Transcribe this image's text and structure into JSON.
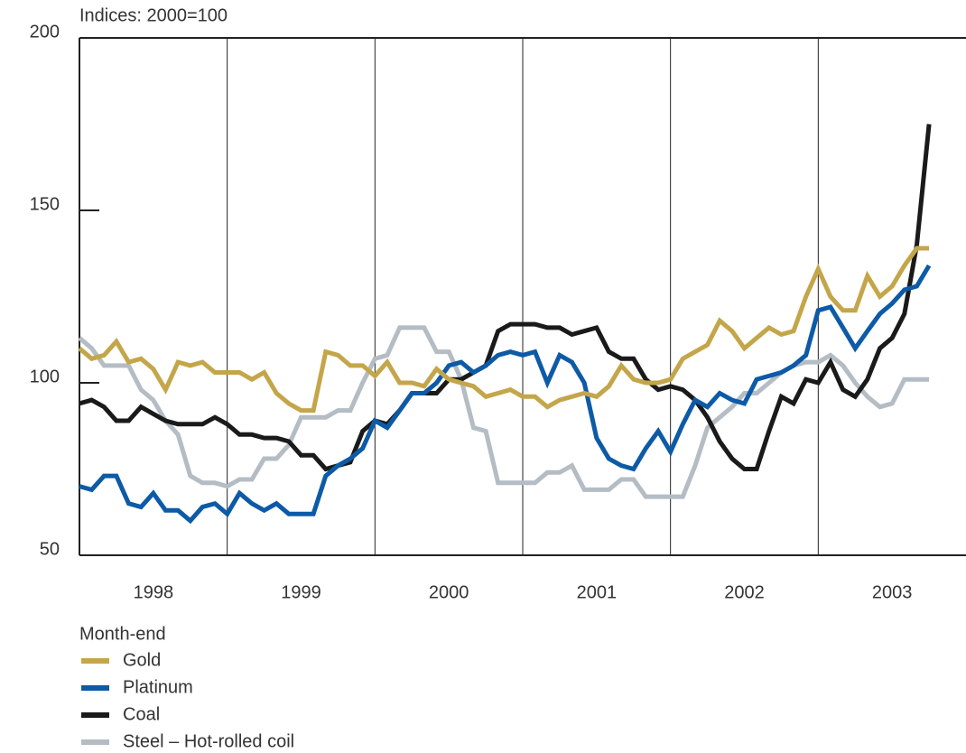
{
  "chart_data": {
    "type": "line",
    "y_label": "Indices: 2000=100",
    "legend_title": "Month-end",
    "x": [
      1998,
      1998.083,
      1998.167,
      1998.25,
      1998.333,
      1998.417,
      1998.5,
      1998.583,
      1998.667,
      1998.75,
      1998.833,
      1998.917,
      1999,
      1999.083,
      1999.167,
      1999.25,
      1999.333,
      1999.417,
      1999.5,
      1999.583,
      1999.667,
      1999.75,
      1999.833,
      1999.917,
      2000,
      2000.083,
      2000.167,
      2000.25,
      2000.333,
      2000.417,
      2000.5,
      2000.583,
      2000.667,
      2000.75,
      2000.833,
      2000.917,
      2001,
      2001.083,
      2001.167,
      2001.25,
      2001.333,
      2001.417,
      2001.5,
      2001.583,
      2001.667,
      2001.75,
      2001.833,
      2001.917,
      2002,
      2002.083,
      2002.167,
      2002.25,
      2002.333,
      2002.417,
      2002.5,
      2002.583,
      2002.667,
      2002.75,
      2002.833,
      2002.917,
      2003,
      2003.083,
      2003.167,
      2003.25,
      2003.333,
      2003.417,
      2003.5,
      2003.583,
      2003.667,
      2003.75
    ],
    "xlim": [
      1998,
      2004
    ],
    "xticks": [
      {
        "value": 1998.5,
        "label": "1998"
      },
      {
        "value": 1999.5,
        "label": "1999"
      },
      {
        "value": 2000.5,
        "label": "2000"
      },
      {
        "value": 2001.5,
        "label": "2001"
      },
      {
        "value": 2002.5,
        "label": "2002"
      },
      {
        "value": 2003.5,
        "label": "2003"
      }
    ],
    "xgrid": [
      1999,
      2000,
      2001,
      2002,
      2003
    ],
    "ylim": [
      50,
      200
    ],
    "yticks": [
      50,
      100,
      150,
      200
    ],
    "series": [
      {
        "name": "Gold",
        "color": "#c4a64a",
        "values": [
          110,
          107,
          108,
          112,
          106,
          107,
          104,
          98,
          106,
          105,
          106,
          103,
          103,
          103,
          101,
          103,
          97,
          94,
          92,
          92,
          109,
          108,
          105,
          105,
          102,
          106,
          100,
          100,
          99,
          104,
          101,
          100,
          99,
          96,
          97,
          98,
          96,
          96,
          93,
          95,
          96,
          97,
          96,
          99,
          105,
          101,
          100,
          100,
          101,
          107,
          109,
          111,
          118,
          115,
          110,
          113,
          116,
          114,
          115,
          125,
          133,
          125,
          121,
          121,
          131,
          125,
          128,
          134,
          139,
          139
        ]
      },
      {
        "name": "Platinum",
        "color": "#0d5aa7",
        "values": [
          70,
          69,
          73,
          73,
          65,
          64,
          68,
          63,
          63,
          60,
          64,
          65,
          62,
          68,
          65,
          63,
          65,
          62,
          62,
          62,
          73,
          76,
          78,
          81,
          89,
          87,
          92,
          97,
          97,
          100,
          105,
          106,
          103,
          105,
          108,
          109,
          108,
          109,
          100,
          108,
          106,
          100,
          84,
          78,
          76,
          75,
          81,
          86,
          80,
          88,
          95,
          93,
          97,
          95,
          94,
          101,
          102,
          103,
          105,
          108,
          121,
          122,
          116,
          110,
          115,
          120,
          123,
          127,
          128,
          134
        ]
      },
      {
        "name": "Coal",
        "color": "#1a1a1a",
        "values": [
          94,
          95,
          93,
          89,
          89,
          93,
          91,
          89,
          88,
          88,
          88,
          90,
          88,
          85,
          85,
          84,
          84,
          83,
          79,
          79,
          75,
          76,
          77,
          86,
          89,
          88,
          92,
          97,
          97,
          97,
          101,
          101,
          103,
          105,
          115,
          117,
          117,
          117,
          116,
          116,
          114,
          115,
          116,
          109,
          107,
          107,
          101,
          98,
          99,
          98,
          95,
          90,
          83,
          78,
          75,
          75,
          86,
          96,
          94,
          101,
          100,
          106,
          98,
          96,
          101,
          110,
          113,
          120,
          140,
          175
        ]
      },
      {
        "name": "Steel – Hot-rolled coil",
        "color": "#b4bcc4",
        "values": [
          113,
          110,
          105,
          105,
          105,
          98,
          95,
          89,
          85,
          73,
          71,
          71,
          70,
          72,
          72,
          78,
          78,
          82,
          90,
          90,
          90,
          92,
          92,
          100,
          107,
          108,
          116,
          116,
          116,
          109,
          109,
          101,
          87,
          86,
          71,
          71,
          71,
          71,
          74,
          74,
          76,
          69,
          69,
          69,
          72,
          72,
          67,
          67,
          67,
          67,
          76,
          87,
          90,
          93,
          97,
          97,
          100,
          103,
          105,
          106,
          106,
          108,
          105,
          100,
          96,
          93,
          94,
          101,
          101,
          101
        ]
      }
    ]
  }
}
